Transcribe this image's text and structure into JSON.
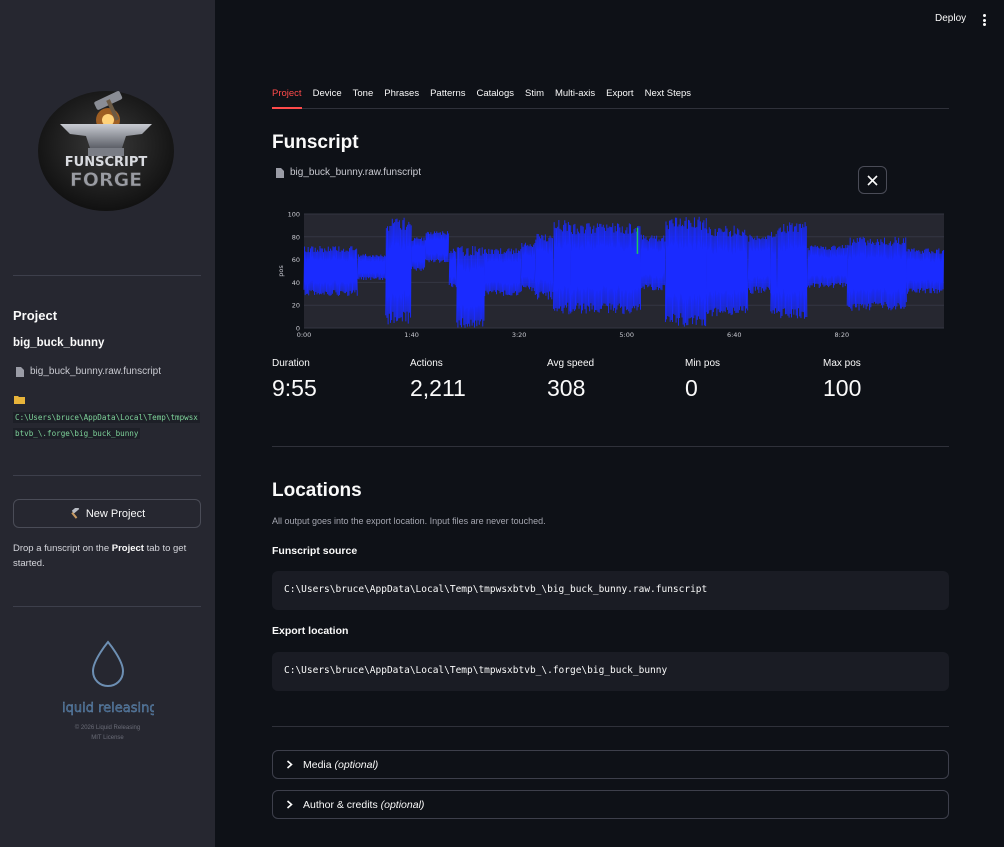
{
  "header": {
    "deploy_label": "Deploy"
  },
  "sidebar": {
    "logo_text_top": "FUNSCRIPT",
    "logo_text_bottom": "FORGE",
    "project_heading": "Project",
    "project_name": "big_buck_bunny",
    "file_name": "big_buck_bunny.raw.funscript",
    "path_line1": "C:\\Users\\bruce\\AppData\\Local\\Temp\\tmpwsx",
    "path_line2": "btvb_\\.forge\\big_buck_bunny",
    "new_project_label": "New Project",
    "help_prefix": "Drop a funscript on the ",
    "help_bold": "Project",
    "help_suffix": " tab to get started.",
    "brand_logo_text": "liquid releasing",
    "copyright": "© 2026 Liquid Releasing",
    "license": "MIT License"
  },
  "tabs": [
    "Project",
    "Device",
    "Tone",
    "Phrases",
    "Patterns",
    "Catalogs",
    "Stim",
    "Multi-axis",
    "Export",
    "Next Steps"
  ],
  "active_tab": "Project",
  "funscript": {
    "title": "Funscript",
    "file_name": "big_buck_bunny.raw.funscript",
    "close_icon": "close-icon"
  },
  "chart_data": {
    "type": "area",
    "title": "",
    "xlabel": "",
    "ylabel": "pos",
    "x_ticks": [
      "0:00",
      "1:40",
      "3:20",
      "5:00",
      "6:40",
      "8:20"
    ],
    "y_ticks": [
      "0",
      "20",
      "40",
      "60",
      "80",
      "100"
    ],
    "ylim": [
      0,
      100
    ],
    "x_range_seconds": [
      0,
      595
    ],
    "grid": true,
    "series_color": "#1a2bff",
    "accent_color": "#22c55e",
    "segments": [
      {
        "t0": 0,
        "t1": 50,
        "lo": 28,
        "hi": 72
      },
      {
        "t0": 50,
        "t1": 76,
        "lo": 42,
        "hi": 65
      },
      {
        "t0": 76,
        "t1": 100,
        "lo": 3,
        "hi": 97
      },
      {
        "t0": 100,
        "t1": 113,
        "lo": 50,
        "hi": 80
      },
      {
        "t0": 113,
        "t1": 135,
        "lo": 57,
        "hi": 85
      },
      {
        "t0": 135,
        "t1": 142,
        "lo": 35,
        "hi": 70
      },
      {
        "t0": 142,
        "t1": 168,
        "lo": 0,
        "hi": 72
      },
      {
        "t0": 168,
        "t1": 202,
        "lo": 28,
        "hi": 70
      },
      {
        "t0": 202,
        "t1": 215,
        "lo": 32,
        "hi": 75
      },
      {
        "t0": 215,
        "t1": 232,
        "lo": 25,
        "hi": 83
      },
      {
        "t0": 232,
        "t1": 248,
        "lo": 12,
        "hi": 95
      },
      {
        "t0": 248,
        "t1": 313,
        "lo": 12,
        "hi": 92
      },
      {
        "t0": 313,
        "t1": 336,
        "lo": 32,
        "hi": 82
      },
      {
        "t0": 336,
        "t1": 374,
        "lo": 1,
        "hi": 98
      },
      {
        "t0": 374,
        "t1": 413,
        "lo": 10,
        "hi": 90
      },
      {
        "t0": 413,
        "t1": 434,
        "lo": 30,
        "hi": 82
      },
      {
        "t0": 434,
        "t1": 440,
        "lo": 10,
        "hi": 85
      },
      {
        "t0": 440,
        "t1": 468,
        "lo": 8,
        "hi": 93
      },
      {
        "t0": 468,
        "t1": 505,
        "lo": 35,
        "hi": 73
      },
      {
        "t0": 505,
        "t1": 560,
        "lo": 15,
        "hi": 80
      },
      {
        "t0": 560,
        "t1": 595,
        "lo": 30,
        "hi": 70
      }
    ],
    "accent_mark": {
      "t": 310,
      "lo": 65,
      "hi": 88
    }
  },
  "stats": [
    {
      "label": "Duration",
      "value": "9:55"
    },
    {
      "label": "Actions",
      "value": "2,211"
    },
    {
      "label": "Avg speed",
      "value": "308"
    },
    {
      "label": "Min pos",
      "value": "0"
    },
    {
      "label": "Max pos",
      "value": "100"
    }
  ],
  "locations": {
    "title": "Locations",
    "caption": "All output goes into the export location. Input files are never touched.",
    "source_label": "Funscript source",
    "source_path": "C:\\Users\\bruce\\AppData\\Local\\Temp\\tmpwsxbtvb_\\big_buck_bunny.raw.funscript",
    "export_label": "Export location",
    "export_path": "C:\\Users\\bruce\\AppData\\Local\\Temp\\tmpwsxbtvb_\\.forge\\big_buck_bunny"
  },
  "expanders": [
    {
      "label": "Media",
      "optional": "(optional)"
    },
    {
      "label": "Author & credits",
      "optional": "(optional)"
    }
  ]
}
